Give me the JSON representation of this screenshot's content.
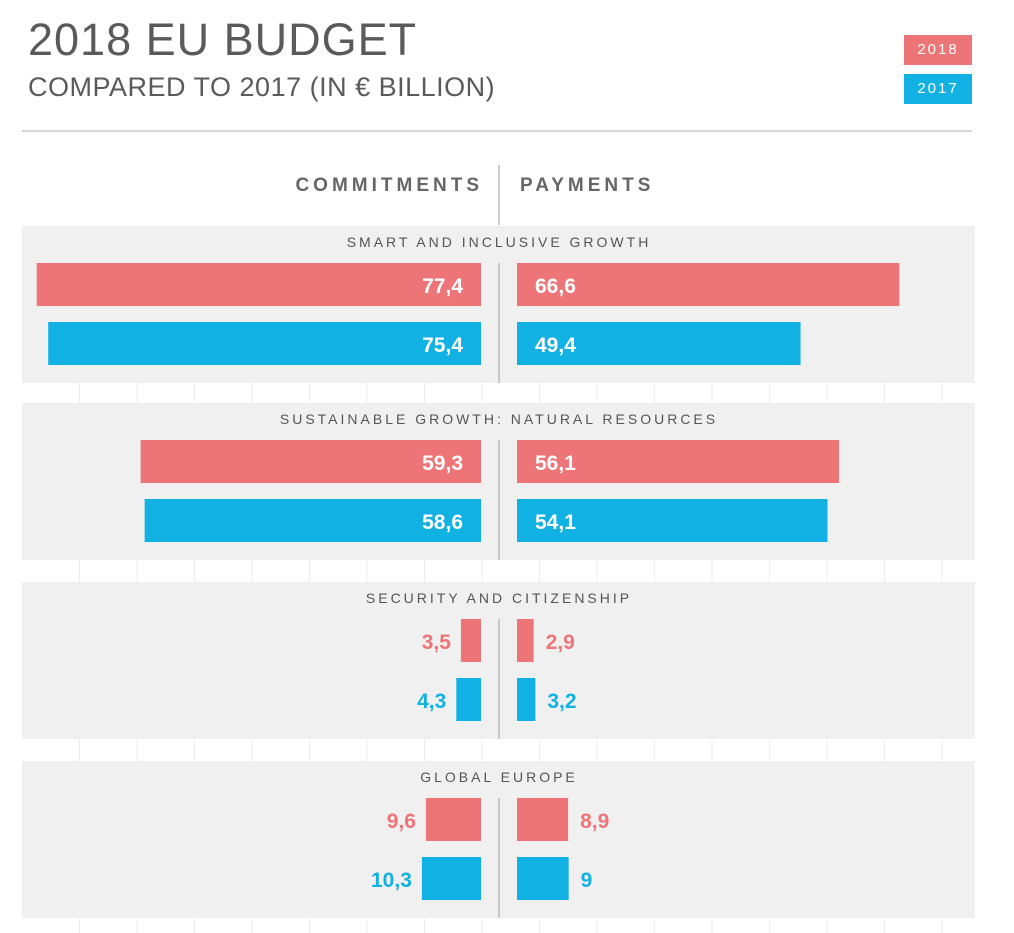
{
  "header": {
    "title": "2018 EU BUDGET",
    "subtitle": "COMPARED TO 2017 (IN € BILLION)"
  },
  "colors": {
    "2018": "#ee7577",
    "2017": "#12b1e3",
    "panel": "#f0f0f0",
    "text": "#5a5a5a"
  },
  "chart_data": {
    "type": "bar",
    "orientation": "horizontal-butterfly",
    "title": "2018 EU BUDGET",
    "subtitle": "COMPARED TO 2017 (IN € BILLION)",
    "legend": {
      "position": "top-right",
      "entries": [
        "2018",
        "2017"
      ]
    },
    "columns": [
      "COMMITMENTS",
      "PAYMENTS"
    ],
    "grid": true,
    "categories": [
      "SMART AND INCLUSIVE GROWTH",
      "SUSTAINABLE GROWTH: NATURAL RESOURCES",
      "SECURITY AND CITIZENSHIP",
      "GLOBAL EUROPE"
    ],
    "series": [
      {
        "name": "2018",
        "commitments": [
          77.4,
          59.3,
          3.5,
          9.6
        ],
        "payments": [
          66.6,
          56.1,
          2.9,
          8.9
        ],
        "labels_commitments": [
          "77,4",
          "59,3",
          "3,5",
          "9,6"
        ],
        "labels_payments": [
          "66,6",
          "56,1",
          "2,9",
          "8,9"
        ]
      },
      {
        "name": "2017",
        "commitments": [
          75.4,
          58.6,
          4.3,
          10.3
        ],
        "payments": [
          49.4,
          54.1,
          3.2,
          9
        ],
        "labels_commitments": [
          "75,4",
          "58,6",
          "4,3",
          "10,3"
        ],
        "labels_payments": [
          "49,4",
          "54,1",
          "3,2",
          "9"
        ]
      }
    ]
  }
}
